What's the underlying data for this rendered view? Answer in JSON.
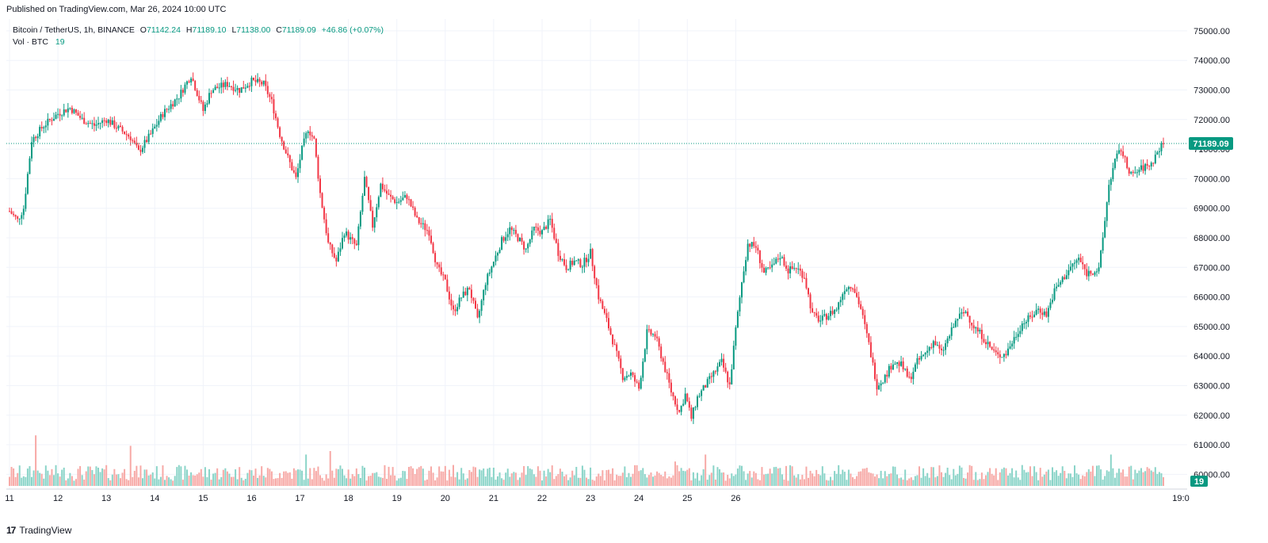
{
  "header": {
    "published": "Published on TradingView.com, Mar 26, 2024 10:00 UTC"
  },
  "legend": {
    "symbol": "Bitcoin / TetherUS, 1h, BINANCE",
    "open_key": "O",
    "open": "71142.24",
    "high_key": "H",
    "high": "71189.10",
    "low_key": "L",
    "low": "71138.00",
    "close_key": "C",
    "close": "71189.09",
    "change": "+46.86 (+0.07%)",
    "vol_label": "Vol · BTC",
    "vol_value": "19"
  },
  "footer": {
    "brand": "TradingView",
    "logo_mark": "17"
  },
  "colors": {
    "up": "#089981",
    "down": "#f23645",
    "vol_up": "#8ad4c8",
    "vol_down": "#f7a9a6",
    "grid": "#f0f3fa"
  },
  "chart_data": {
    "type": "candlestick",
    "symbol": "Bitcoin / TetherUS",
    "interval": "1h",
    "exchange": "BINANCE",
    "last_price": "71189.09",
    "last_volume": "19",
    "y_ticks": [
      "75000.00",
      "74000.00",
      "73000.00",
      "72000.00",
      "71000.00",
      "70000.00",
      "69000.00",
      "68000.00",
      "67000.00",
      "66000.00",
      "65000.00",
      "64000.00",
      "63000.00",
      "62000.00",
      "61000.00",
      "60000.00"
    ],
    "ylim": [
      59500,
      75400
    ],
    "x_ticks": [
      "11",
      "12",
      "13",
      "14",
      "15",
      "16",
      "17",
      "18",
      "19",
      "20",
      "21",
      "22",
      "23",
      "24",
      "25",
      "26",
      "19:0"
    ],
    "anchors": [
      {
        "t": 0,
        "p": 68900
      },
      {
        "t": 4,
        "p": 68600
      },
      {
        "t": 7,
        "p": 69000
      },
      {
        "t": 11,
        "p": 71300
      },
      {
        "t": 17,
        "p": 71800
      },
      {
        "t": 24,
        "p": 72200
      },
      {
        "t": 30,
        "p": 72400
      },
      {
        "t": 36,
        "p": 72000
      },
      {
        "t": 42,
        "p": 71800
      },
      {
        "t": 48,
        "p": 72000
      },
      {
        "t": 54,
        "p": 71700
      },
      {
        "t": 60,
        "p": 71400
      },
      {
        "t": 64,
        "p": 70900
      },
      {
        "t": 70,
        "p": 71500
      },
      {
        "t": 76,
        "p": 72200
      },
      {
        "t": 84,
        "p": 72800
      },
      {
        "t": 90,
        "p": 73500
      },
      {
        "t": 96,
        "p": 72300
      },
      {
        "t": 100,
        "p": 73000
      },
      {
        "t": 108,
        "p": 73200
      },
      {
        "t": 114,
        "p": 73000
      },
      {
        "t": 120,
        "p": 73300
      },
      {
        "t": 126,
        "p": 73200
      },
      {
        "t": 130,
        "p": 72600
      },
      {
        "t": 134,
        "p": 71500
      },
      {
        "t": 138,
        "p": 70700
      },
      {
        "t": 142,
        "p": 70000
      },
      {
        "t": 145,
        "p": 71000
      },
      {
        "t": 148,
        "p": 71700
      },
      {
        "t": 151,
        "p": 71300
      },
      {
        "t": 154,
        "p": 69500
      },
      {
        "t": 158,
        "p": 67800
      },
      {
        "t": 162,
        "p": 67200
      },
      {
        "t": 166,
        "p": 68200
      },
      {
        "t": 172,
        "p": 67700
      },
      {
        "t": 176,
        "p": 70000
      },
      {
        "t": 180,
        "p": 68400
      },
      {
        "t": 184,
        "p": 69800
      },
      {
        "t": 188,
        "p": 69400
      },
      {
        "t": 192,
        "p": 69200
      },
      {
        "t": 197,
        "p": 69400
      },
      {
        "t": 202,
        "p": 68600
      },
      {
        "t": 208,
        "p": 68200
      },
      {
        "t": 212,
        "p": 67000
      },
      {
        "t": 216,
        "p": 66500
      },
      {
        "t": 220,
        "p": 65500
      },
      {
        "t": 224,
        "p": 66000
      },
      {
        "t": 228,
        "p": 66300
      },
      {
        "t": 232,
        "p": 65200
      },
      {
        "t": 236,
        "p": 66500
      },
      {
        "t": 240,
        "p": 67200
      },
      {
        "t": 244,
        "p": 67900
      },
      {
        "t": 248,
        "p": 68300
      },
      {
        "t": 252,
        "p": 68000
      },
      {
        "t": 256,
        "p": 67600
      },
      {
        "t": 260,
        "p": 68300
      },
      {
        "t": 264,
        "p": 68200
      },
      {
        "t": 268,
        "p": 68600
      },
      {
        "t": 272,
        "p": 67500
      },
      {
        "t": 276,
        "p": 67000
      },
      {
        "t": 280,
        "p": 67200
      },
      {
        "t": 284,
        "p": 67100
      },
      {
        "t": 288,
        "p": 67500
      },
      {
        "t": 292,
        "p": 66000
      },
      {
        "t": 296,
        "p": 65200
      },
      {
        "t": 300,
        "p": 64300
      },
      {
        "t": 304,
        "p": 63300
      },
      {
        "t": 308,
        "p": 63400
      },
      {
        "t": 312,
        "p": 62900
      },
      {
        "t": 316,
        "p": 64800
      },
      {
        "t": 320,
        "p": 64700
      },
      {
        "t": 324,
        "p": 63800
      },
      {
        "t": 328,
        "p": 62800
      },
      {
        "t": 332,
        "p": 62100
      },
      {
        "t": 335,
        "p": 62700
      },
      {
        "t": 338,
        "p": 61900
      },
      {
        "t": 341,
        "p": 62600
      },
      {
        "t": 345,
        "p": 63000
      },
      {
        "t": 349,
        "p": 63400
      },
      {
        "t": 353,
        "p": 63800
      },
      {
        "t": 357,
        "p": 63000
      },
      {
        "t": 360,
        "p": 64900
      },
      {
        "t": 363,
        "p": 66500
      },
      {
        "t": 366,
        "p": 67800
      },
      {
        "t": 370,
        "p": 67700
      },
      {
        "t": 374,
        "p": 66800
      },
      {
        "t": 378,
        "p": 67000
      },
      {
        "t": 382,
        "p": 67400
      },
      {
        "t": 386,
        "p": 66900
      },
      {
        "t": 390,
        "p": 67000
      },
      {
        "t": 394,
        "p": 66700
      },
      {
        "t": 398,
        "p": 65400
      },
      {
        "t": 402,
        "p": 65200
      },
      {
        "t": 406,
        "p": 65400
      },
      {
        "t": 410,
        "p": 65600
      },
      {
        "t": 414,
        "p": 66300
      },
      {
        "t": 418,
        "p": 66400
      },
      {
        "t": 422,
        "p": 65600
      },
      {
        "t": 426,
        "p": 64400
      },
      {
        "t": 430,
        "p": 63000
      },
      {
        "t": 434,
        "p": 63300
      },
      {
        "t": 438,
        "p": 63800
      },
      {
        "t": 442,
        "p": 63700
      },
      {
        "t": 446,
        "p": 63200
      },
      {
        "t": 450,
        "p": 63800
      },
      {
        "t": 454,
        "p": 64100
      },
      {
        "t": 458,
        "p": 64500
      },
      {
        "t": 462,
        "p": 64100
      },
      {
        "t": 466,
        "p": 64700
      },
      {
        "t": 470,
        "p": 65300
      },
      {
        "t": 474,
        "p": 65500
      },
      {
        "t": 478,
        "p": 65000
      },
      {
        "t": 482,
        "p": 64700
      },
      {
        "t": 486,
        "p": 64300
      },
      {
        "t": 490,
        "p": 64000
      },
      {
        "t": 494,
        "p": 64100
      },
      {
        "t": 498,
        "p": 64600
      },
      {
        "t": 502,
        "p": 65100
      },
      {
        "t": 506,
        "p": 65300
      },
      {
        "t": 510,
        "p": 65600
      },
      {
        "t": 514,
        "p": 65400
      },
      {
        "t": 518,
        "p": 66200
      },
      {
        "t": 522,
        "p": 66600
      },
      {
        "t": 526,
        "p": 67000
      },
      {
        "t": 530,
        "p": 67300
      },
      {
        "t": 534,
        "p": 66800
      },
      {
        "t": 538,
        "p": 66900
      },
      {
        "t": 540,
        "p": 66900
      },
      {
        "t": 542,
        "p": 68000
      },
      {
        "t": 545,
        "p": 69800
      },
      {
        "t": 548,
        "p": 70600
      },
      {
        "t": 551,
        "p": 71000
      },
      {
        "t": 554,
        "p": 70400
      },
      {
        "t": 557,
        "p": 70100
      },
      {
        "t": 560,
        "p": 70300
      },
      {
        "t": 563,
        "p": 70400
      },
      {
        "t": 566,
        "p": 70500
      },
      {
        "t": 569,
        "p": 70900
      },
      {
        "t": 572,
        "p": 71189
      }
    ],
    "n_candles": 573,
    "volume_spikes": {
      "13": 29,
      "60": 23,
      "147": 18,
      "159": 20,
      "220": 12,
      "330": 14,
      "345": 18,
      "505": 8,
      "546": 18
    }
  }
}
